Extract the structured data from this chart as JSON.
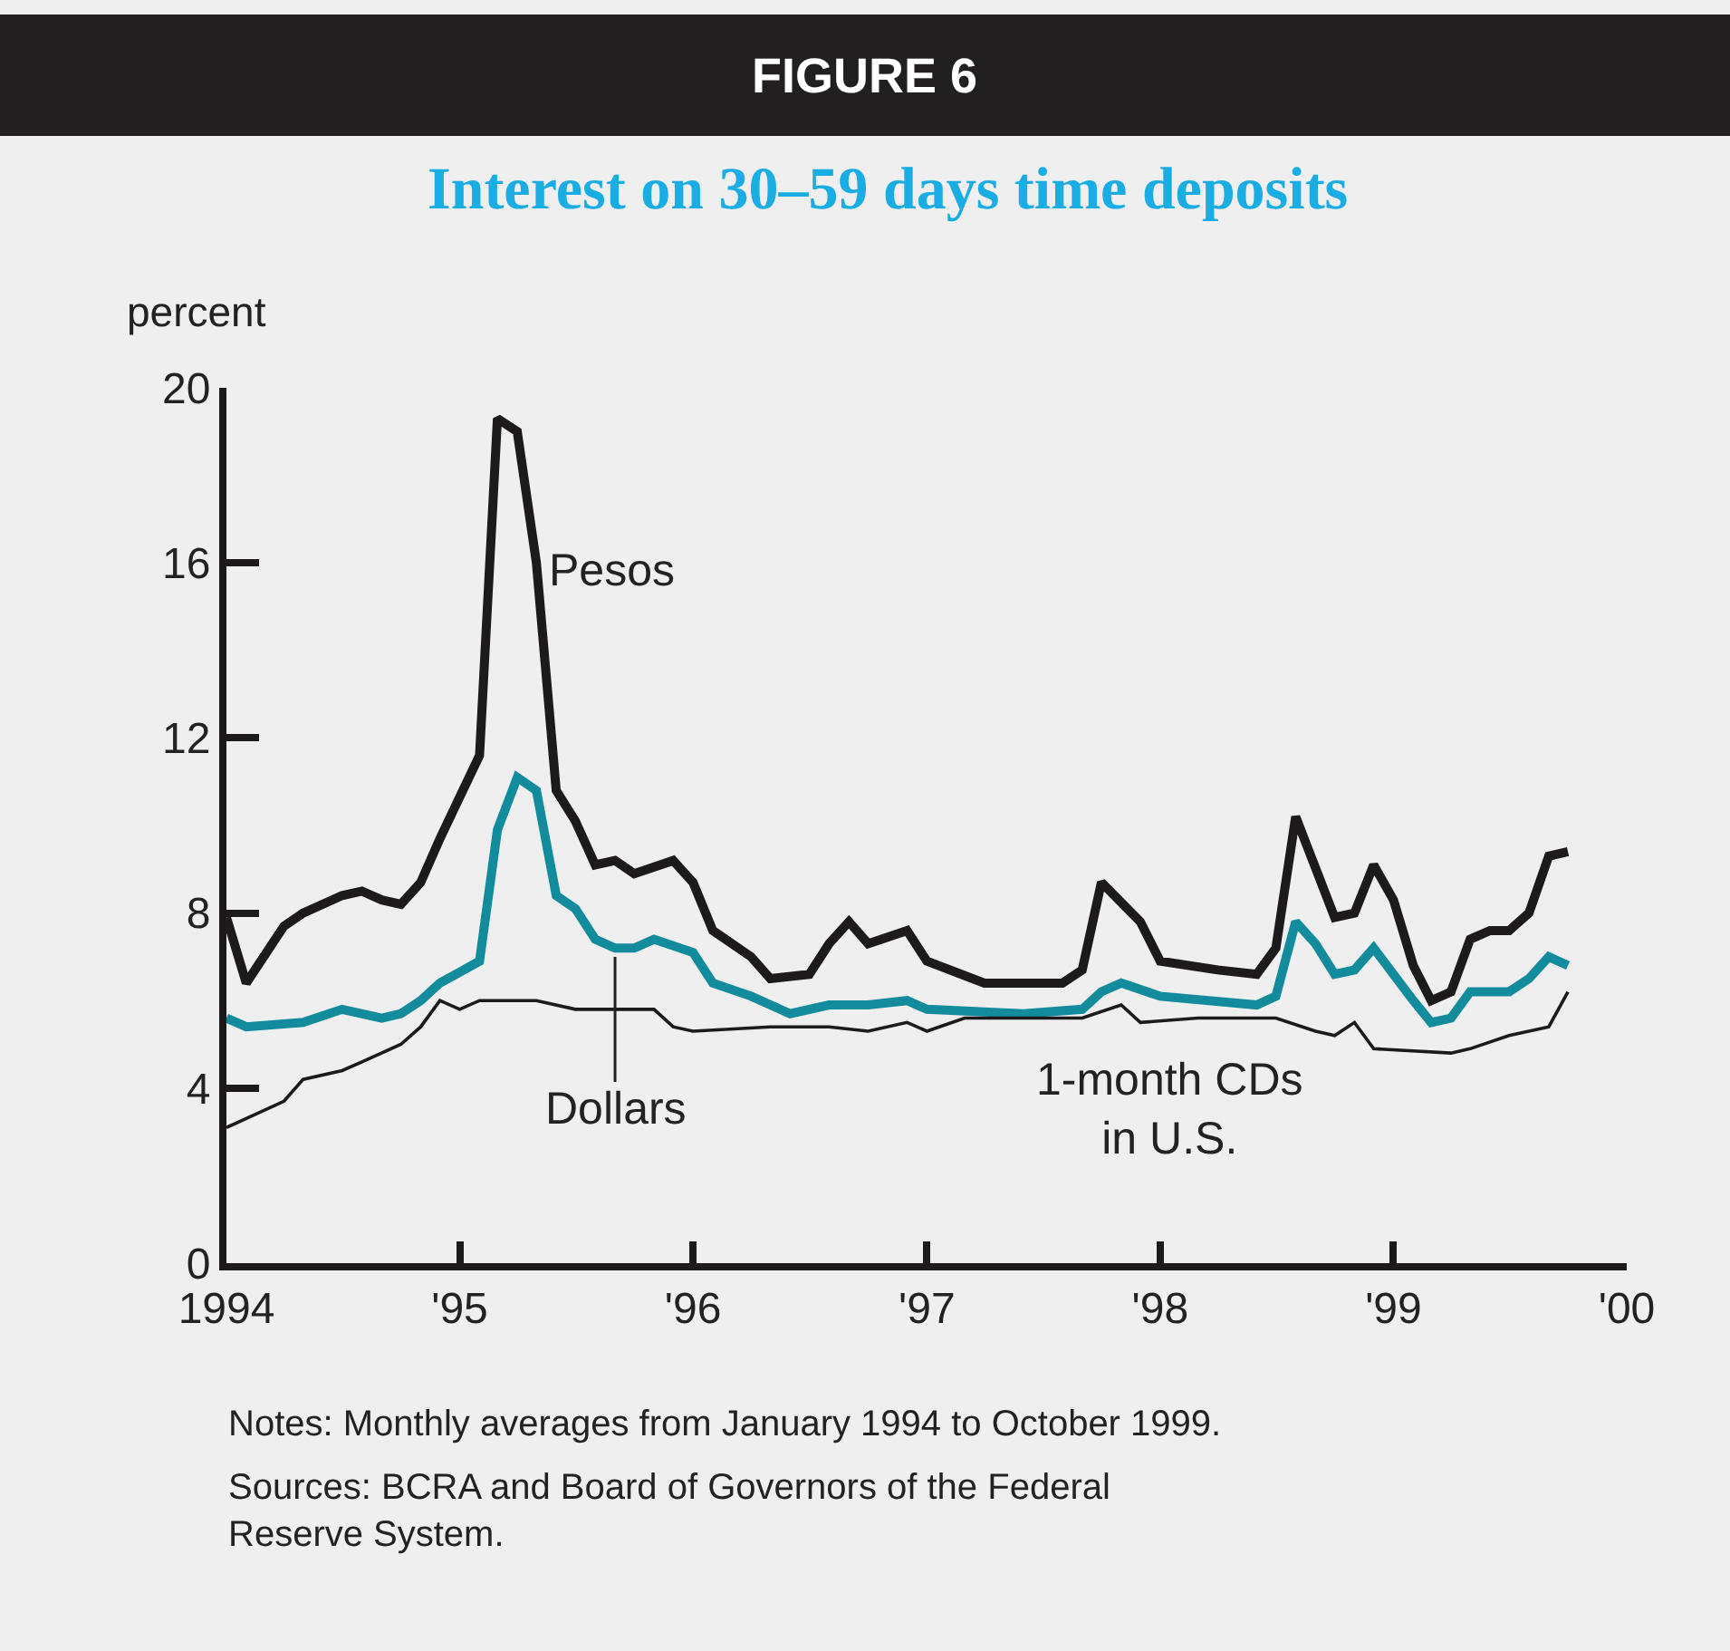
{
  "chart_data": {
    "type": "line",
    "title": "FIGURE 6",
    "subtitle": "Interest on 30–59 days time deposits",
    "ylabel": "percent",
    "xlim": [
      "1994-01",
      "2000-01"
    ],
    "xticks": [
      {
        "value": "1994",
        "label": "1994"
      },
      {
        "value": "1995",
        "label": "'95"
      },
      {
        "value": "1996",
        "label": "'96"
      },
      {
        "value": "1997",
        "label": "'97"
      },
      {
        "value": "1998",
        "label": "'98"
      },
      {
        "value": "1999",
        "label": "'99"
      },
      {
        "value": "2000",
        "label": "'00"
      }
    ],
    "ylim": [
      0,
      20
    ],
    "yticks": [
      0,
      4,
      8,
      12,
      16,
      20
    ],
    "grid": false,
    "legend": false,
    "marker": "none",
    "line_style": "solid",
    "series": [
      {
        "name": "Pesos",
        "color": "#1c1a1b",
        "x": [
          "1994-01",
          "1994-02",
          "1994-04",
          "1994-05",
          "1994-07",
          "1994-08",
          "1994-09",
          "1994-10",
          "1994-11",
          "1994-12",
          "1995-02",
          "1995-03",
          "1995-04",
          "1995-05",
          "1995-06",
          "1995-07",
          "1995-08",
          "1995-09",
          "1995-10",
          "1995-12",
          "1996-01",
          "1996-02",
          "1996-04",
          "1996-05",
          "1996-07",
          "1996-08",
          "1996-09",
          "1996-10",
          "1996-12",
          "1997-01",
          "1997-04",
          "1997-08",
          "1997-09",
          "1997-10",
          "1997-12",
          "1998-01",
          "1998-04",
          "1998-06",
          "1998-07",
          "1998-08",
          "1998-10",
          "1998-11",
          "1998-12",
          "1999-01",
          "1999-02",
          "1999-03",
          "1999-04",
          "1999-05",
          "1999-06",
          "1999-07",
          "1999-08",
          "1999-09",
          "1999-10"
        ],
        "values": [
          7.9,
          6.4,
          7.7,
          8.0,
          8.4,
          8.5,
          8.3,
          8.2,
          8.7,
          9.7,
          11.6,
          19.3,
          19.0,
          16.0,
          10.8,
          10.1,
          9.1,
          9.2,
          8.9,
          9.2,
          8.7,
          7.6,
          7.0,
          6.5,
          6.6,
          7.3,
          7.8,
          7.3,
          7.6,
          6.9,
          6.4,
          6.4,
          6.7,
          8.7,
          7.8,
          6.9,
          6.7,
          6.6,
          7.2,
          10.2,
          7.9,
          8.0,
          9.1,
          8.3,
          6.8,
          6.0,
          6.2,
          7.4,
          7.6,
          7.6,
          8.0,
          9.3,
          9.4
        ]
      },
      {
        "name": "Dollars",
        "color": "#128b9d",
        "x": [
          "1994-01",
          "1994-02",
          "1994-05",
          "1994-07",
          "1994-09",
          "1994-10",
          "1994-11",
          "1994-12",
          "1995-02",
          "1995-03",
          "1995-04",
          "1995-05",
          "1995-06",
          "1995-07",
          "1995-08",
          "1995-09",
          "1995-10",
          "1995-11",
          "1996-01",
          "1996-02",
          "1996-04",
          "1996-06",
          "1996-08",
          "1996-10",
          "1996-12",
          "1997-01",
          "1997-06",
          "1997-09",
          "1997-10",
          "1997-11",
          "1998-01",
          "1998-06",
          "1998-07",
          "1998-08",
          "1998-09",
          "1998-10",
          "1998-11",
          "1998-12",
          "1999-01",
          "1999-02",
          "1999-03",
          "1999-04",
          "1999-05",
          "1999-07",
          "1999-08",
          "1999-09",
          "1999-10"
        ],
        "values": [
          5.6,
          5.4,
          5.5,
          5.8,
          5.6,
          5.7,
          6.0,
          6.4,
          6.9,
          9.9,
          11.1,
          10.8,
          8.4,
          8.1,
          7.4,
          7.2,
          7.2,
          7.4,
          7.1,
          6.4,
          6.1,
          5.7,
          5.9,
          5.9,
          6.0,
          5.8,
          5.7,
          5.8,
          6.2,
          6.4,
          6.1,
          5.9,
          6.1,
          7.8,
          7.3,
          6.6,
          6.7,
          7.2,
          6.6,
          6.0,
          5.5,
          5.6,
          6.2,
          6.2,
          6.5,
          7.0,
          6.8
        ]
      },
      {
        "name": "1-month CDs in U.S.",
        "color": "#1c1a1b",
        "x": [
          "1994-01",
          "1994-04",
          "1994-05",
          "1994-07",
          "1994-08",
          "1994-10",
          "1994-11",
          "1994-12",
          "1995-01",
          "1995-02",
          "1995-05",
          "1995-07",
          "1995-11",
          "1995-12",
          "1996-01",
          "1996-05",
          "1996-08",
          "1996-10",
          "1996-12",
          "1997-01",
          "1997-03",
          "1997-09",
          "1997-11",
          "1997-12",
          "1998-03",
          "1998-07",
          "1998-09",
          "1998-10",
          "1998-11",
          "1998-12",
          "1999-04",
          "1999-05",
          "1999-07",
          "1999-09",
          "1999-10"
        ],
        "values": [
          3.1,
          3.7,
          4.2,
          4.4,
          4.6,
          5.0,
          5.4,
          6.0,
          5.8,
          6.0,
          6.0,
          5.8,
          5.8,
          5.4,
          5.3,
          5.4,
          5.4,
          5.3,
          5.5,
          5.3,
          5.6,
          5.6,
          5.9,
          5.5,
          5.6,
          5.6,
          5.3,
          5.2,
          5.5,
          4.9,
          4.8,
          4.9,
          5.2,
          5.4,
          6.2
        ]
      }
    ],
    "annotations": [
      "Notes: Monthly averages from January 1994 to October 1999.",
      "Sources: BCRA and Board of Governors of the Federal Reserve System."
    ]
  }
}
